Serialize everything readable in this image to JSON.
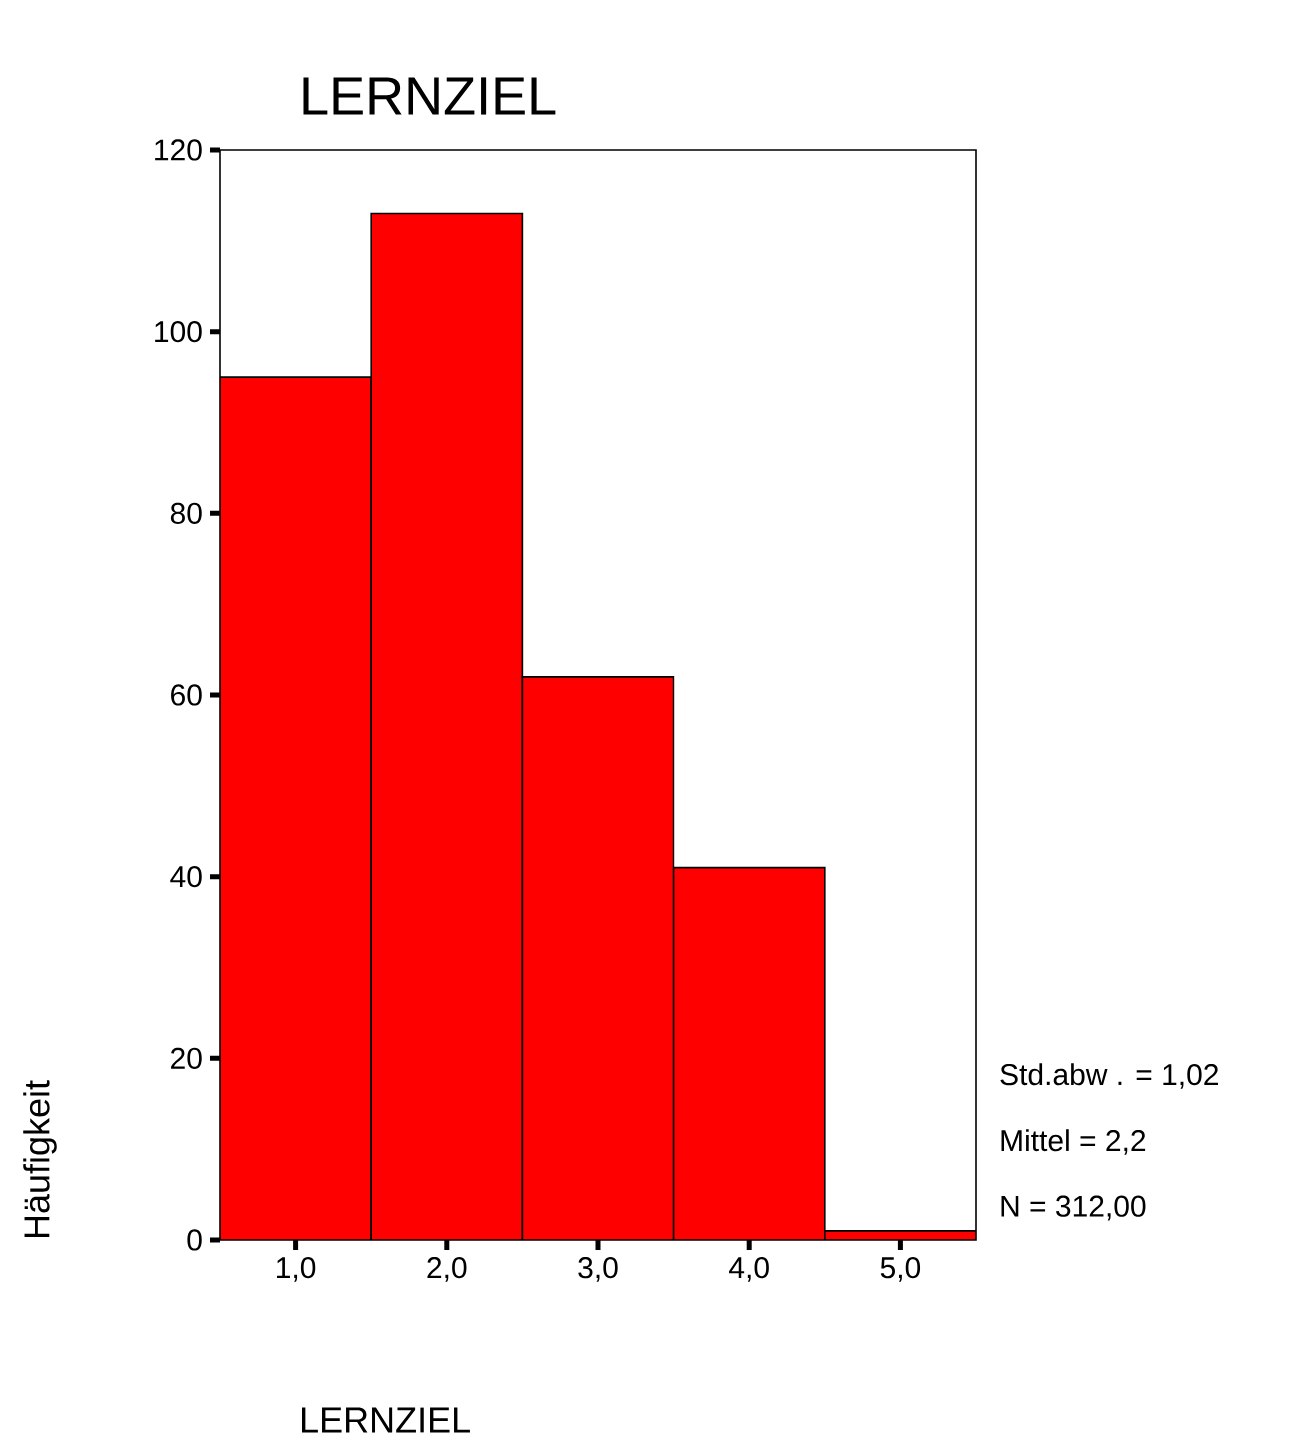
{
  "chart_data": {
    "type": "histogram",
    "title": "LERNZIEL",
    "xlabel": "LERNZIEL",
    "ylabel": "Häufigkeit",
    "bins": [
      0.5,
      1.5,
      2.5,
      3.5,
      4.5,
      5.5
    ],
    "values": [
      95,
      113,
      62,
      41,
      1
    ],
    "color": "#ff0000",
    "xlim": [
      0.5,
      5.5
    ],
    "ylim": [
      0,
      120
    ],
    "xticks": [
      {
        "value": 1,
        "label": "1,0"
      },
      {
        "value": 2,
        "label": "2,0"
      },
      {
        "value": 3,
        "label": "3,0"
      },
      {
        "value": 4,
        "label": "4,0"
      },
      {
        "value": 5,
        "label": "5,0"
      }
    ],
    "yticks": [
      0,
      20,
      40,
      60,
      80,
      100,
      120
    ],
    "grid": false,
    "annotations": [
      "Std.abw . = 1,02",
      "Mittel = 2,2",
      "N = 312,00"
    ]
  }
}
